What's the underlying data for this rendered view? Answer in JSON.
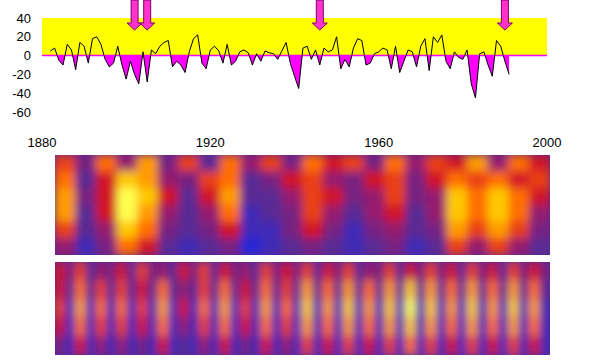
{
  "chart_data": [
    {
      "type": "line",
      "x": [
        1882,
        1883,
        1884,
        1885,
        1886,
        1887,
        1888,
        1889,
        1890,
        1891,
        1892,
        1893,
        1894,
        1895,
        1896,
        1897,
        1898,
        1899,
        1900,
        1901,
        1902,
        1903,
        1904,
        1905,
        1906,
        1907,
        1908,
        1909,
        1910,
        1911,
        1912,
        1913,
        1914,
        1915,
        1916,
        1917,
        1918,
        1919,
        1920,
        1921,
        1922,
        1923,
        1924,
        1925,
        1926,
        1927,
        1928,
        1929,
        1930,
        1931,
        1932,
        1933,
        1934,
        1935,
        1936,
        1937,
        1938,
        1939,
        1940,
        1941,
        1942,
        1943,
        1944,
        1945,
        1946,
        1947,
        1948,
        1949,
        1950,
        1951,
        1952,
        1953,
        1954,
        1955,
        1956,
        1957,
        1958,
        1959,
        1960,
        1961,
        1962,
        1963,
        1964,
        1965,
        1966,
        1967,
        1968,
        1969,
        1970,
        1971,
        1972,
        1973,
        1974,
        1975,
        1976,
        1977,
        1978,
        1979,
        1980,
        1981,
        1982,
        1983,
        1984,
        1985,
        1986,
        1987,
        1988,
        1989,
        1990,
        1991
      ],
      "series": [
        {
          "color": "#000000",
          "values": [
            5,
            8,
            -5,
            -10,
            12,
            6,
            -15,
            14,
            10,
            -8,
            18,
            20,
            12,
            -4,
            -12,
            -8,
            10,
            -10,
            -25,
            -6,
            -20,
            -30,
            4,
            -28,
            6,
            2,
            10,
            14,
            16,
            -12,
            -6,
            -10,
            -18,
            4,
            18,
            22,
            -8,
            -14,
            6,
            10,
            5,
            -8,
            12,
            -10,
            -6,
            4,
            6,
            3,
            -10,
            2,
            -6,
            5,
            3,
            2,
            -4,
            5,
            14,
            -8,
            -22,
            -35,
            8,
            10,
            -4,
            6,
            -10,
            8,
            4,
            6,
            20,
            -14,
            -4,
            -12,
            8,
            18,
            16,
            -10,
            -8,
            2,
            4,
            8,
            6,
            -14,
            10,
            -18,
            -6,
            6,
            4,
            -12,
            10,
            18,
            -16,
            20,
            14,
            22,
            -6,
            -14,
            4,
            -2,
            -4,
            6,
            -30,
            -45,
            2,
            4,
            -10,
            -22,
            16,
            10,
            -6,
            -20
          ]
        }
      ],
      "xlim": [
        1880,
        2000
      ],
      "xticks": [
        1880,
        1920,
        1960,
        2000
      ],
      "ylim": [
        -60,
        40
      ],
      "yticks": [
        -60,
        -40,
        -20,
        0,
        20,
        40
      ],
      "band": [
        0,
        40
      ],
      "arrows": [
        1902,
        1905,
        1946,
        1990
      ]
    },
    {
      "type": "heatmap",
      "zlim": [
        0,
        10
      ],
      "cells": [
        [
          6,
          3,
          7,
          4,
          8,
          3,
          6,
          2,
          7,
          4,
          6,
          3,
          7,
          5,
          6,
          3,
          7,
          4,
          6,
          5,
          8,
          4,
          7,
          5
        ],
        [
          7,
          2,
          5,
          9,
          8,
          4,
          3,
          6,
          7,
          2,
          3,
          5,
          6,
          4,
          3,
          5,
          6,
          3,
          5,
          7,
          6,
          7,
          5,
          6
        ],
        [
          8,
          3,
          5,
          10,
          9,
          5,
          2,
          5,
          8,
          2,
          2,
          4,
          6,
          5,
          3,
          4,
          6,
          3,
          4,
          9,
          7,
          9,
          7,
          5
        ],
        [
          8,
          2,
          5,
          10,
          8,
          4,
          2,
          4,
          7,
          1,
          2,
          3,
          6,
          4,
          2,
          4,
          5,
          2,
          4,
          9,
          7,
          9,
          7,
          4
        ],
        [
          6,
          2,
          4,
          9,
          7,
          3,
          2,
          3,
          5,
          1,
          1,
          3,
          5,
          3,
          1,
          3,
          4,
          2,
          3,
          8,
          6,
          8,
          6,
          3
        ],
        [
          4,
          1,
          3,
          7,
          5,
          2,
          1,
          2,
          3,
          0,
          1,
          2,
          3,
          2,
          1,
          2,
          3,
          1,
          2,
          6,
          4,
          6,
          4,
          2
        ]
      ]
    },
    {
      "type": "heatmap",
      "zlim": [
        0,
        10
      ],
      "cells": [
        [
          5,
          3,
          6,
          2,
          4,
          3,
          5,
          2,
          6,
          3,
          4,
          2,
          5,
          3,
          6,
          2,
          5,
          3,
          4,
          2,
          6,
          3,
          5,
          3,
          6,
          2,
          5,
          3,
          6,
          2,
          4,
          3,
          6,
          2,
          5,
          3,
          6,
          3,
          5,
          2,
          6,
          3,
          5,
          2,
          6,
          3,
          5,
          3
        ],
        [
          5,
          2,
          7,
          2,
          6,
          2,
          6,
          2,
          5,
          2,
          7,
          2,
          4,
          2,
          6,
          2,
          7,
          2,
          5,
          2,
          7,
          2,
          6,
          2,
          8,
          2,
          7,
          2,
          8,
          2,
          7,
          2,
          8,
          2,
          9,
          2,
          8,
          2,
          7,
          2,
          8,
          2,
          7,
          2,
          8,
          2,
          7,
          2
        ],
        [
          6,
          1,
          8,
          1,
          7,
          1,
          7,
          1,
          6,
          1,
          8,
          1,
          5,
          1,
          7,
          1,
          8,
          1,
          6,
          1,
          8,
          1,
          7,
          1,
          9,
          1,
          8,
          1,
          9,
          1,
          8,
          1,
          9,
          1,
          10,
          1,
          9,
          1,
          8,
          1,
          9,
          1,
          8,
          1,
          9,
          1,
          8,
          1
        ],
        [
          5,
          1,
          7,
          1,
          6,
          1,
          6,
          1,
          5,
          1,
          7,
          1,
          4,
          1,
          6,
          1,
          7,
          1,
          5,
          1,
          7,
          1,
          6,
          1,
          8,
          1,
          7,
          1,
          8,
          1,
          7,
          1,
          8,
          1,
          9,
          1,
          8,
          1,
          7,
          1,
          8,
          1,
          7,
          1,
          8,
          1,
          7,
          1
        ],
        [
          3,
          1,
          5,
          1,
          4,
          1,
          4,
          1,
          3,
          1,
          5,
          1,
          2,
          1,
          4,
          1,
          5,
          1,
          3,
          1,
          5,
          1,
          4,
          1,
          6,
          1,
          5,
          1,
          6,
          1,
          5,
          1,
          6,
          1,
          7,
          1,
          6,
          1,
          5,
          1,
          6,
          1,
          5,
          1,
          6,
          1,
          5,
          1
        ]
      ]
    }
  ]
}
